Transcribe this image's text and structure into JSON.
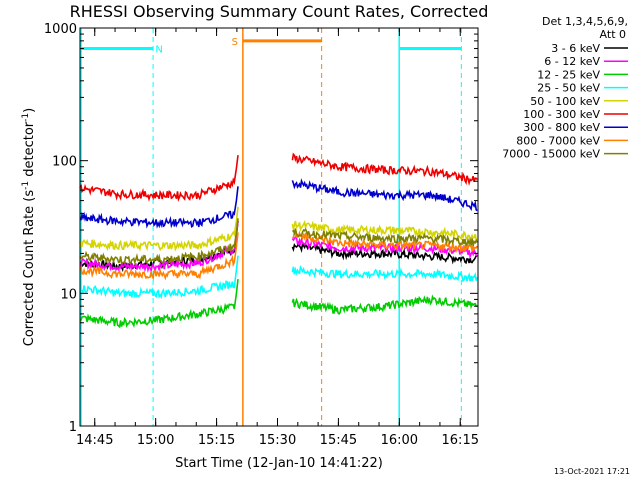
{
  "chart_data": {
    "type": "line",
    "title": "RHESSI Observing Summary Count Rates, Corrected",
    "xlabel": "Start Time (12-Jan-10 14:41:22)",
    "ylabel": "Corrected Count Rate (s-1 detector-1)",
    "ylabel_parts": {
      "a": "Corrected Count Rate (s",
      "b": "-1",
      "c": " detector",
      "d": "-1",
      "e": ")"
    },
    "yscale": "log",
    "ylim": [
      1,
      1000
    ],
    "xlim_minutes": [
      0,
      98
    ],
    "xtick_labels": [
      {
        "minute": 3.63,
        "label": "14:45"
      },
      {
        "minute": 18.63,
        "label": "15:00"
      },
      {
        "minute": 33.63,
        "label": "15:15"
      },
      {
        "minute": 48.63,
        "label": "15:30"
      },
      {
        "minute": 63.63,
        "label": "15:45"
      },
      {
        "minute": 78.63,
        "label": "16:00"
      },
      {
        "minute": 93.63,
        "label": "16:15"
      }
    ],
    "ytick_labels": [
      {
        "value": 1,
        "label": "1"
      },
      {
        "value": 10,
        "label": "10"
      },
      {
        "value": 100,
        "label": "100"
      },
      {
        "value": 1000,
        "label": "1000"
      }
    ],
    "legend_header": [
      "Det 1,3,4,5,6,9,",
      "Att 0"
    ],
    "legend_position": "right",
    "series": [
      {
        "name": "3 - 6 keV",
        "color": "#000000",
        "seg1": [
          17,
          16,
          17,
          18,
          22
        ],
        "seg2": [
          23,
          20,
          20,
          19,
          18
        ]
      },
      {
        "name": "6 - 12 keV",
        "color": "#ff00ff",
        "seg1": [
          17,
          16,
          16,
          17,
          22
        ],
        "seg2": [
          25,
          22,
          22,
          22,
          20
        ]
      },
      {
        "name": "12 - 25 keV",
        "color": "#00cc00",
        "seg1": [
          6.5,
          6,
          6.3,
          7,
          8
        ],
        "seg2": [
          8.5,
          7.5,
          8,
          9,
          8
        ]
      },
      {
        "name": "25 - 50 keV",
        "color": "#00ffff",
        "seg1": [
          11,
          10,
          10,
          10.5,
          12
        ],
        "seg2": [
          15,
          14,
          14,
          14,
          13
        ]
      },
      {
        "name": "50 - 100 keV",
        "color": "#d4d400",
        "seg1": [
          24,
          23,
          23,
          23,
          28
        ],
        "seg2": [
          33,
          30,
          30,
          29,
          27
        ]
      },
      {
        "name": "100 - 300 keV",
        "color": "#ee0000",
        "seg1": [
          62,
          56,
          55,
          55,
          70
        ],
        "seg2": [
          105,
          90,
          85,
          83,
          70
        ]
      },
      {
        "name": "300 - 800 keV",
        "color": "#0000cc",
        "seg1": [
          37,
          35,
          34,
          34,
          40
        ],
        "seg2": [
          68,
          58,
          55,
          55,
          45
        ]
      },
      {
        "name": "800 - 7000 keV",
        "color": "#ff8000",
        "seg1": [
          15,
          14,
          14,
          14,
          18
        ],
        "seg2": [
          28,
          24,
          23,
          23,
          22
        ]
      },
      {
        "name": "7000 - 15000 keV",
        "color": "#808000",
        "seg1": [
          19,
          18,
          18,
          19,
          23
        ],
        "seg2": [
          29,
          27,
          26,
          26,
          24
        ]
      }
    ],
    "flare_spike": {
      "minute": 38.9,
      "value": 110
    },
    "segments_minutes": {
      "seg1": [
        0,
        38.9
      ],
      "seg2": [
        52.3,
        98
      ]
    },
    "bars": [
      {
        "label": "N",
        "color": "#00ffff",
        "level": 700,
        "start": 0,
        "end": 18.0
      },
      {
        "label": "S",
        "color": "#ff8000",
        "level": 800,
        "start": 40.1,
        "end": 59.5
      },
      {
        "label": "",
        "color": "#00ffff",
        "level": 700,
        "start": 78.6,
        "end": 93.9
      }
    ],
    "annotation": "13-Oct-2021 17:21"
  }
}
